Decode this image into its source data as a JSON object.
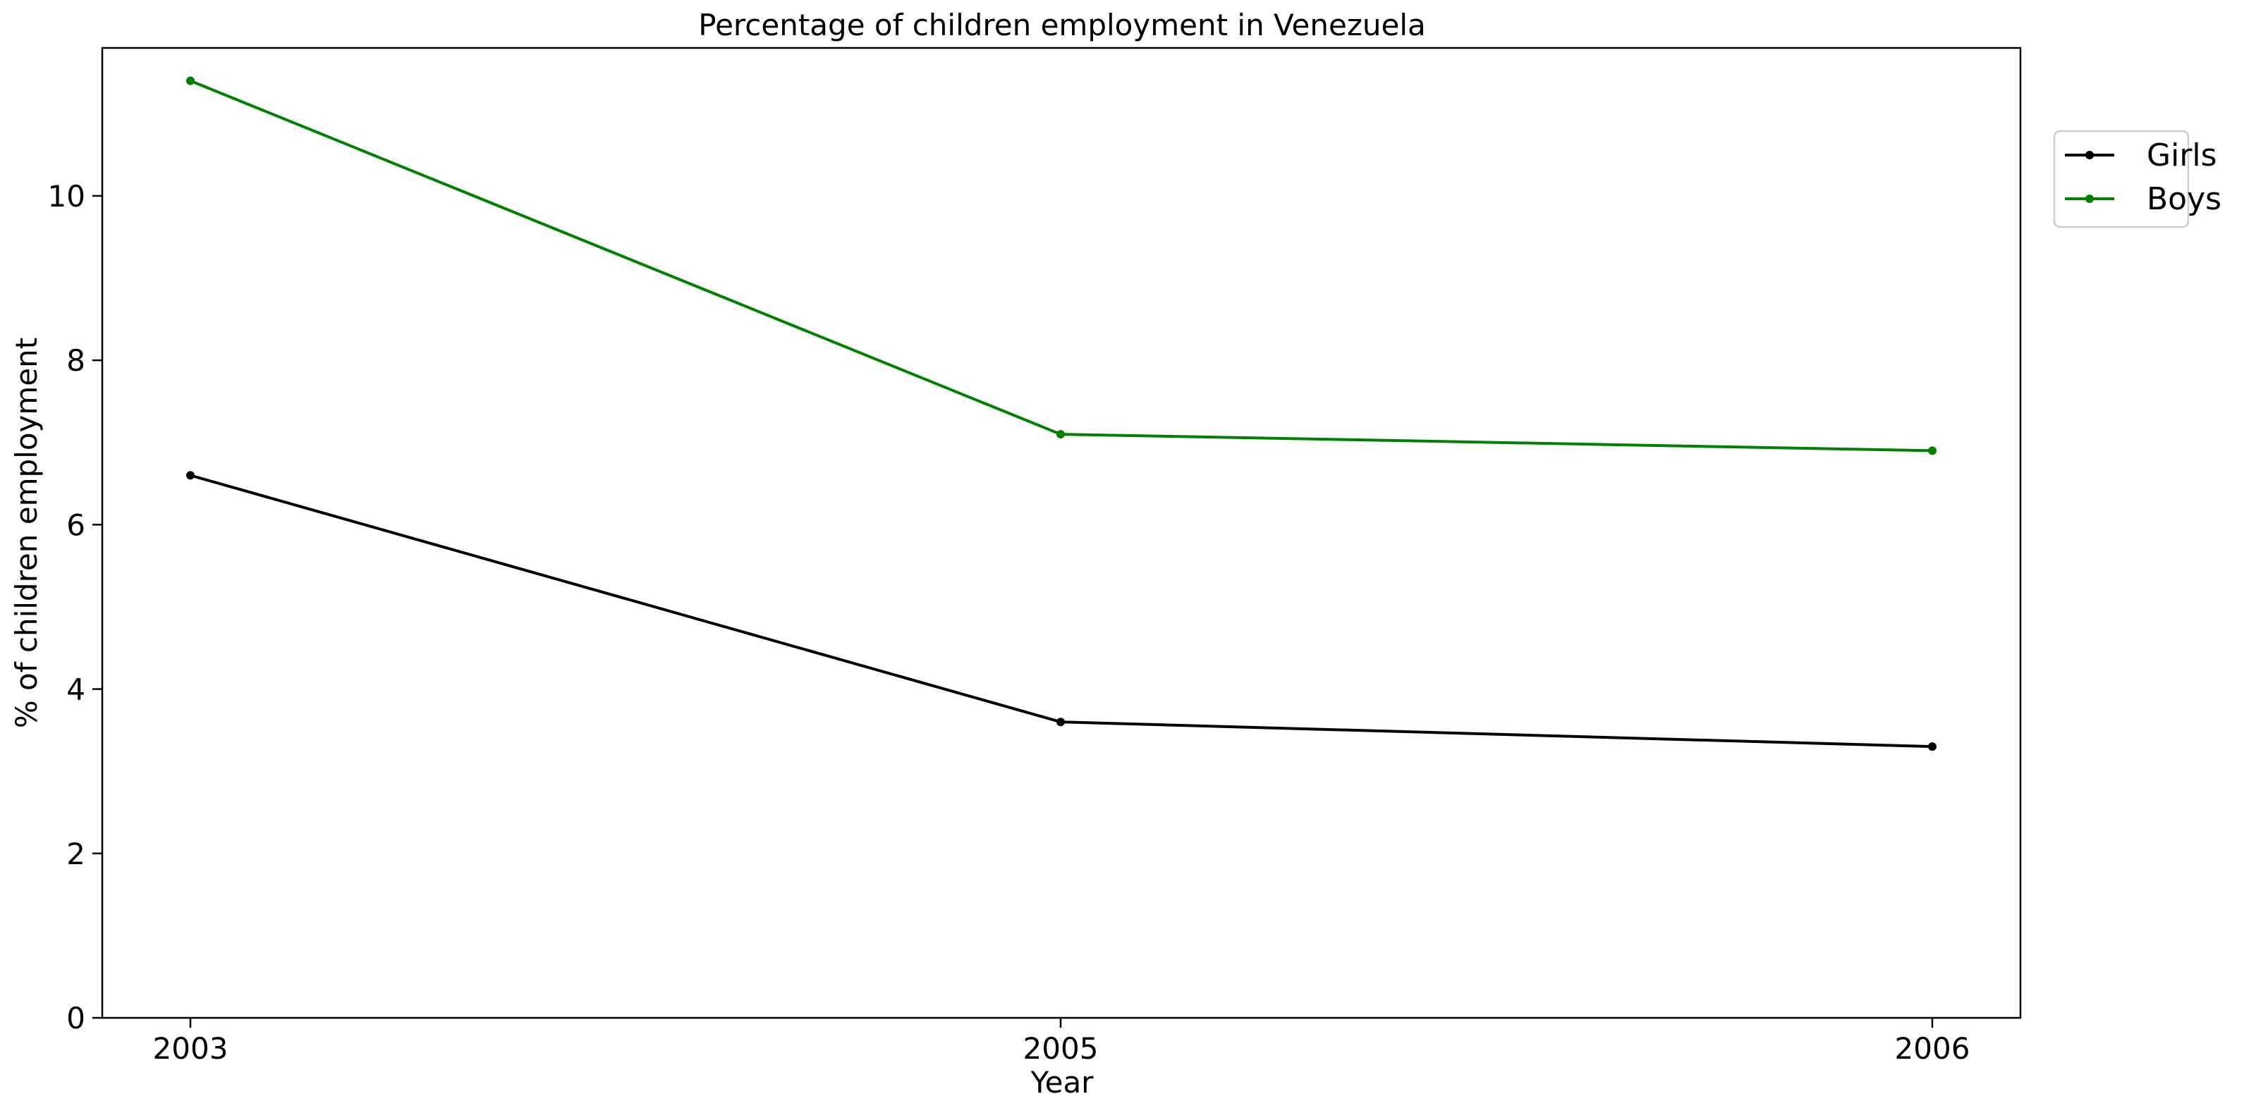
{
  "chart_data": {
    "type": "line",
    "title": "Percentage of children employment in Venezuela",
    "xlabel": "Year",
    "ylabel": "% of children employment",
    "categories": [
      "2003",
      "2005",
      "2006"
    ],
    "yticks": [
      "0",
      "2",
      "4",
      "6",
      "8",
      "10"
    ],
    "ylim": [
      0,
      11.8
    ],
    "grid": false,
    "legend_position": "upper-right, outside the plot area",
    "series": [
      {
        "name": "Girls",
        "color": "#000000",
        "values": [
          6.6,
          3.6,
          3.3
        ]
      },
      {
        "name": "Boys",
        "color": "#008000",
        "values": [
          11.4,
          7.1,
          6.9
        ]
      }
    ]
  }
}
